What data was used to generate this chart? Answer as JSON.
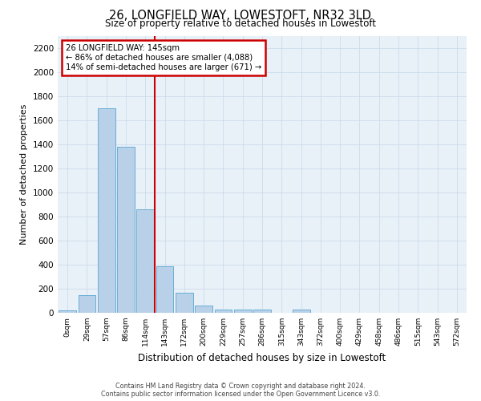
{
  "title": "26, LONGFIELD WAY, LOWESTOFT, NR32 3LD",
  "subtitle": "Size of property relative to detached houses in Lowestoft",
  "xlabel": "Distribution of detached houses by size in Lowestoft",
  "ylabel": "Number of detached properties",
  "categories": [
    "0sqm",
    "29sqm",
    "57sqm",
    "86sqm",
    "114sqm",
    "143sqm",
    "172sqm",
    "200sqm",
    "229sqm",
    "257sqm",
    "286sqm",
    "315sqm",
    "343sqm",
    "372sqm",
    "400sqm",
    "429sqm",
    "458sqm",
    "486sqm",
    "515sqm",
    "543sqm",
    "572sqm"
  ],
  "bar_values": [
    20,
    150,
    1700,
    1380,
    860,
    390,
    170,
    60,
    30,
    25,
    25,
    0,
    30,
    0,
    0,
    0,
    0,
    0,
    0,
    0,
    0
  ],
  "bar_color": "#b8d0e8",
  "bar_edgecolor": "#6aaed6",
  "property_value": 145,
  "annotation_line1": "26 LONGFIELD WAY: 145sqm",
  "annotation_line2": "← 86% of detached houses are smaller (4,088)",
  "annotation_line3": "14% of semi-detached houses are larger (671) →",
  "annotation_box_color": "#ffffff",
  "annotation_box_edgecolor": "#cc0000",
  "vline_color": "#cc0000",
  "ylim": [
    0,
    2300
  ],
  "yticks": [
    0,
    200,
    400,
    600,
    800,
    1000,
    1200,
    1400,
    1600,
    1800,
    2000,
    2200
  ],
  "grid_color": "#c8d8e8",
  "background_color": "#e8f0f8",
  "footer_line1": "Contains HM Land Registry data © Crown copyright and database right 2024.",
  "footer_line2": "Contains public sector information licensed under the Open Government Licence v3.0."
}
